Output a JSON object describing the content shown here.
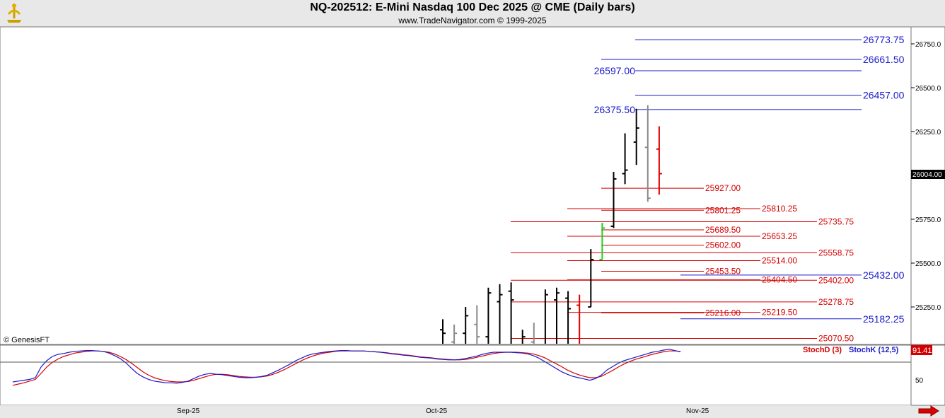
{
  "header": {
    "title": "NQ-202512:  E-Mini Nasdaq 100 Dec 2025 @ CME  (Daily bars)",
    "subtitle": "www.TradeNavigator.com © 1999-2025"
  },
  "watermark": "© GenesisFT",
  "price_axis": {
    "ticks": [
      "26750.0",
      "26500.0",
      "26250.0",
      "25750.0",
      "25500.0",
      "25250.0"
    ],
    "current_price": "26004.00"
  },
  "time_axis": {
    "labels": [
      "Sep-25",
      "Oct-25",
      "Nov-25"
    ]
  },
  "blue_levels": [
    {
      "value": 26773.75,
      "label": "26773.75",
      "side": "right"
    },
    {
      "value": 26661.5,
      "label": "26661.50",
      "side": "right"
    },
    {
      "value": 26597.0,
      "label": "26597.00",
      "side": "left"
    },
    {
      "value": 26457.0,
      "label": "26457.00",
      "side": "right"
    },
    {
      "value": 26375.5,
      "label": "26375.50",
      "side": "left"
    },
    {
      "value": 25432.0,
      "label": "25432.00",
      "side": "right"
    },
    {
      "value": 25182.25,
      "label": "25182.25",
      "side": "right"
    }
  ],
  "red_levels": [
    {
      "value": 25927.0,
      "label": "25927.00"
    },
    {
      "value": 25810.25,
      "label": "25810.25"
    },
    {
      "value": 25801.25,
      "label": "25801.25"
    },
    {
      "value": 25735.75,
      "label": "25735.75"
    },
    {
      "value": 25689.5,
      "label": "25689.50"
    },
    {
      "value": 25653.25,
      "label": "25653.25"
    },
    {
      "value": 25602.0,
      "label": "25602.00"
    },
    {
      "value": 25558.75,
      "label": "25558.75"
    },
    {
      "value": 25514.0,
      "label": "25514.00"
    },
    {
      "value": 25453.5,
      "label": "25453.50"
    },
    {
      "value": 25404.5,
      "label": "25404.50"
    },
    {
      "value": 25402.0,
      "label": "25402.00"
    },
    {
      "value": 25278.75,
      "label": "25278.75"
    },
    {
      "value": 25219.5,
      "label": "25219.50"
    },
    {
      "value": 25216.0,
      "label": "25216.00"
    },
    {
      "value": 25070.5,
      "label": "25070.50"
    }
  ],
  "colors": {
    "blue_level": "#1a1acc",
    "red_level": "#d40000",
    "bar_black": "#000000",
    "bar_gray": "#8a8a8a",
    "bar_red": "#e00000",
    "bar_green": "#22cc22",
    "stoch_k": "#1a1acc",
    "stoch_d": "#d40000"
  },
  "chart_data": {
    "type": "ohlc",
    "ylim": [
      24980,
      26880
    ],
    "bars": [
      {
        "o": 25120,
        "h": 25180,
        "l": 24980,
        "c": 25100,
        "color": "black"
      },
      {
        "o": 25050,
        "h": 25150,
        "l": 24980,
        "c": 25100,
        "color": "gray"
      },
      {
        "o": 25100,
        "h": 25250,
        "l": 24980,
        "c": 25200,
        "color": "black"
      },
      {
        "o": 25150,
        "h": 25260,
        "l": 24980,
        "c": 25080,
        "color": "gray"
      },
      {
        "o": 25080,
        "h": 25360,
        "l": 24980,
        "c": 25330,
        "color": "black"
      },
      {
        "o": 25280,
        "h": 25380,
        "l": 24980,
        "c": 25320,
        "color": "black"
      },
      {
        "o": 25340,
        "h": 25390,
        "l": 24980,
        "c": 25290,
        "color": "black"
      },
      {
        "o": 25000,
        "h": 25120,
        "l": 24980,
        "c": 25080,
        "color": "black"
      },
      {
        "o": 25050,
        "h": 25160,
        "l": 24980,
        "c": 25010,
        "color": "gray"
      },
      {
        "o": 25010,
        "h": 25350,
        "l": 24980,
        "c": 25320,
        "color": "black"
      },
      {
        "o": 25290,
        "h": 25360,
        "l": 24980,
        "c": 25330,
        "color": "black"
      },
      {
        "o": 25300,
        "h": 25340,
        "l": 24980,
        "c": 25240,
        "color": "black"
      },
      {
        "o": 25260,
        "h": 25320,
        "l": 24980,
        "c": 25000,
        "color": "red"
      },
      {
        "o": 25250,
        "h": 25580,
        "l": 25250,
        "c": 25520,
        "color": "black"
      },
      {
        "o": 25520,
        "h": 25730,
        "l": 25520,
        "c": 25700,
        "color": "green"
      },
      {
        "o": 25710,
        "h": 26020,
        "l": 25700,
        "c": 25980,
        "color": "black"
      },
      {
        "o": 26010,
        "h": 26240,
        "l": 25950,
        "c": 26030,
        "color": "black"
      },
      {
        "o": 26190,
        "h": 26380,
        "l": 26060,
        "c": 26270,
        "color": "black"
      },
      {
        "o": 26160,
        "h": 26400,
        "l": 25850,
        "c": 25870,
        "color": "gray"
      },
      {
        "o": 26150,
        "h": 26280,
        "l": 25890,
        "c": 26010,
        "color": "red"
      }
    ]
  },
  "stochastic": {
    "stoch_d_label": "StochD (3)",
    "stoch_k_label": "StochK (12,5)",
    "current_value": "91.41",
    "tick_label": "50",
    "k_values": [
      20,
      22,
      24,
      26,
      30,
      55,
      70,
      80,
      85,
      87,
      90,
      92,
      93,
      94,
      94,
      93,
      92,
      88,
      82,
      75,
      65,
      52,
      40,
      32,
      26,
      22,
      20,
      18,
      18,
      17,
      19,
      22,
      28,
      34,
      38,
      40,
      38,
      37,
      35,
      33,
      31,
      30,
      30,
      31,
      33,
      36,
      42,
      48,
      55,
      62,
      70,
      76,
      82,
      86,
      88,
      90,
      92,
      93,
      94,
      94,
      93,
      93,
      93,
      92,
      91,
      90,
      88,
      86,
      85,
      83,
      82,
      80,
      78,
      77,
      76,
      74,
      73,
      72,
      72,
      73,
      75,
      78,
      81,
      85,
      88,
      90,
      90,
      90,
      90,
      89,
      88,
      86,
      82,
      76,
      68,
      60,
      52,
      44,
      38,
      33,
      30,
      27,
      24,
      28,
      36,
      48,
      56,
      64,
      70,
      74,
      78,
      82,
      86,
      90,
      92,
      95,
      97,
      94,
      91
    ],
    "d_values": [
      12,
      15,
      18,
      22,
      26,
      40,
      55,
      66,
      74,
      80,
      84,
      88,
      90,
      92,
      93,
      93,
      92,
      90,
      86,
      80,
      73,
      64,
      54,
      44,
      36,
      30,
      26,
      23,
      21,
      20,
      20,
      21,
      24,
      28,
      32,
      36,
      38,
      38,
      37,
      35,
      33,
      32,
      31,
      31,
      32,
      34,
      38,
      43,
      49,
      56,
      63,
      70,
      76,
      81,
      85,
      88,
      90,
      92,
      93,
      93,
      93,
      93,
      93,
      92,
      91,
      90,
      89,
      87,
      86,
      84,
      83,
      81,
      79,
      78,
      77,
      75,
      74,
      73,
      72,
      72,
      73,
      75,
      78,
      81,
      84,
      87,
      89,
      90,
      90,
      90,
      89,
      88,
      86,
      82,
      77,
      70,
      63,
      56,
      48,
      42,
      37,
      33,
      30,
      30,
      33,
      40,
      47,
      55,
      62,
      68,
      73,
      77,
      81,
      85,
      88,
      91,
      93,
      93,
      92
    ]
  }
}
